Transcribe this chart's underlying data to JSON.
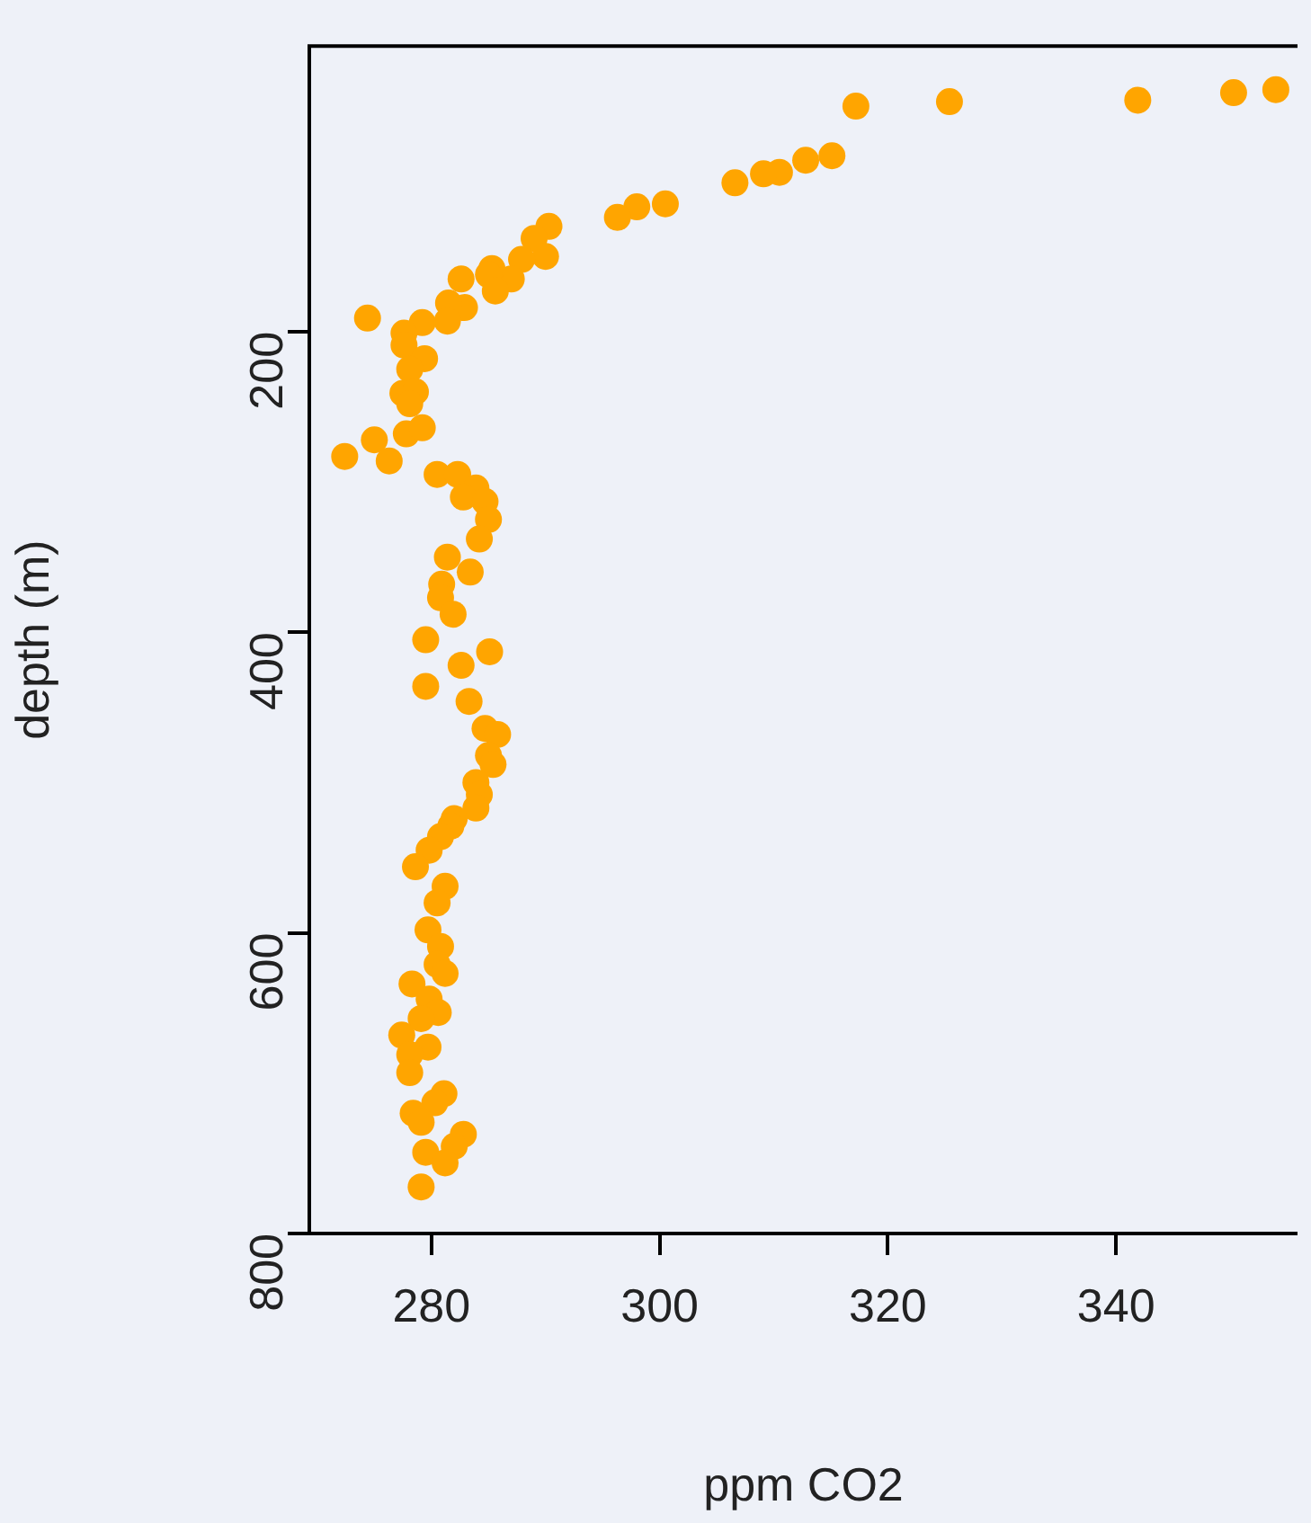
{
  "chart_data": {
    "type": "scatter",
    "xlabel": "ppm CO2",
    "ylabel": "depth (m)",
    "color": "#ffa500",
    "marker": "circle",
    "grid": false,
    "legend": false,
    "xlim": [
      269.3,
      355.9
    ],
    "xticks": [
      280,
      300,
      320,
      340
    ],
    "ylim": [
      800,
      10
    ],
    "yticks": [
      200,
      400,
      600,
      800
    ],
    "x": [
      354.0,
      350.3,
      341.9,
      325.4,
      317.2,
      315.1,
      312.8,
      310.5,
      309.1,
      306.6,
      300.5,
      298.0,
      296.3,
      290.3,
      289.0,
      290.0,
      287.9,
      287.0,
      285.3,
      285.0,
      285.6,
      282.6,
      282.9,
      281.5,
      281.4,
      274.4,
      279.2,
      277.6,
      277.6,
      279.4,
      278.1,
      277.5,
      278.6,
      278.1,
      277.8,
      279.2,
      275.0,
      272.4,
      276.3,
      280.5,
      282.3,
      283.9,
      282.8,
      284.7,
      285.0,
      284.2,
      281.4,
      283.4,
      280.9,
      280.8,
      281.9,
      279.5,
      285.1,
      282.6,
      279.5,
      283.3,
      284.7,
      285.8,
      285.0,
      285.4,
      283.9,
      284.2,
      283.9,
      282.0,
      281.7,
      280.8,
      279.8,
      278.6,
      281.2,
      280.5,
      279.7,
      280.8,
      280.5,
      281.2,
      278.3,
      279.8,
      280.6,
      279.1,
      277.4,
      279.7,
      278.1,
      278.1,
      281.1,
      280.3,
      278.4,
      279.1,
      282.8,
      282.0,
      279.5,
      281.2,
      279.1
    ],
    "values": [
      39,
      41,
      46,
      47,
      50,
      83,
      86,
      94,
      95,
      101,
      115,
      117,
      124,
      130,
      138,
      150,
      152,
      165,
      158,
      162,
      173,
      165,
      184,
      181,
      193,
      191,
      194,
      201,
      209,
      218,
      225,
      241,
      240,
      248,
      268,
      264,
      272,
      283,
      286,
      295,
      295,
      304,
      310,
      313,
      325,
      338,
      350,
      360,
      368,
      377,
      388,
      405,
      413,
      422,
      436,
      446,
      464,
      468,
      482,
      488,
      500,
      508,
      517,
      524,
      529,
      536,
      545,
      556,
      569,
      580,
      598,
      609,
      621,
      627,
      634,
      644,
      653,
      657,
      668,
      676,
      681,
      693,
      707,
      713,
      720,
      726,
      734,
      742,
      746,
      753,
      769
    ]
  }
}
